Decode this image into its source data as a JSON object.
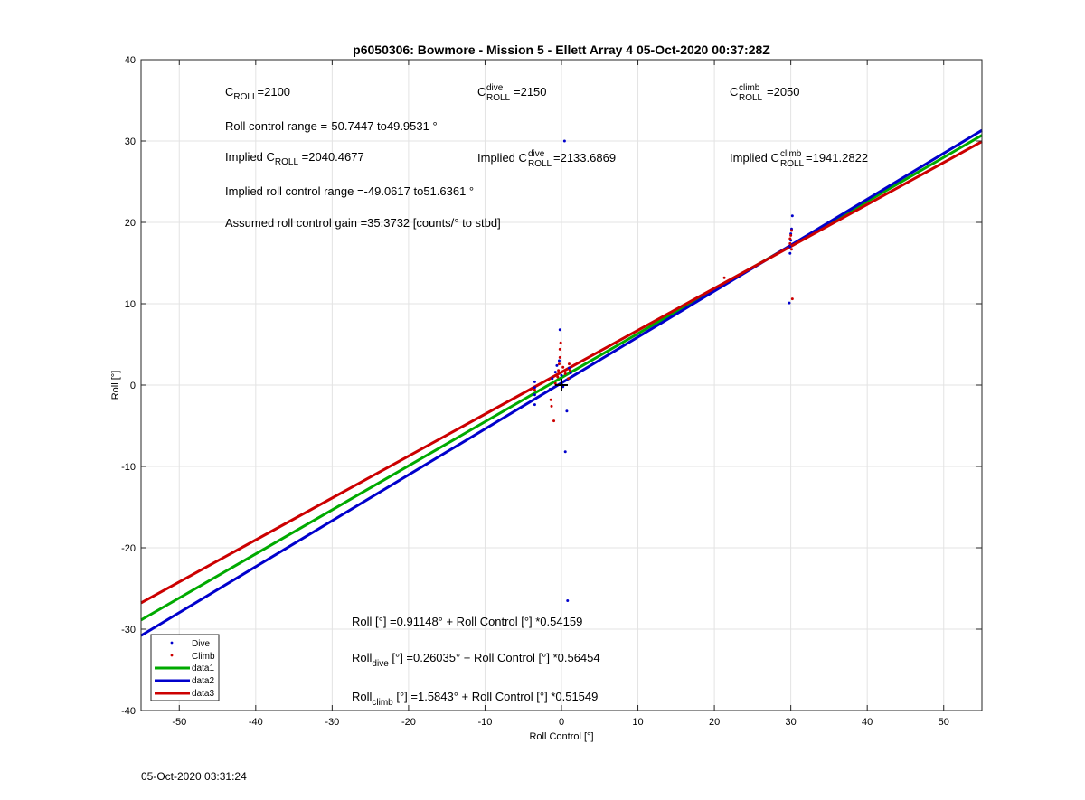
{
  "chart_data": {
    "type": "scatter",
    "title": "p6050306: Bowmore - Mission 5 - Ellett Array 4 05-Oct-2020 00:37:28Z",
    "xlabel": "Roll Control [°]",
    "ylabel": "Roll [°]",
    "xlim": [
      -55,
      55
    ],
    "ylim": [
      -40,
      40
    ],
    "xticks": [
      -50,
      -40,
      -30,
      -20,
      -10,
      0,
      10,
      20,
      30,
      40,
      50
    ],
    "yticks": [
      -40,
      -30,
      -20,
      -10,
      0,
      10,
      20,
      30,
      40
    ],
    "grid": true,
    "legend_position": "bottom-left",
    "series": [
      {
        "name": "Dive",
        "kind": "points",
        "color": "#0000cc",
        "points": [
          [
            -3.5,
            0.4
          ],
          [
            -3.5,
            -0.3
          ],
          [
            -3.5,
            -1.2
          ],
          [
            -3.5,
            -2.4
          ],
          [
            -1.5,
            -0.5
          ],
          [
            -1.2,
            0.8
          ],
          [
            -0.8,
            1.6
          ],
          [
            -0.6,
            2.4
          ],
          [
            -0.3,
            3.0
          ],
          [
            -0.2,
            6.8
          ],
          [
            0,
            1.2
          ],
          [
            0,
            0.2
          ],
          [
            0.2,
            -0.2
          ],
          [
            0.4,
            30.0
          ],
          [
            0.5,
            -8.2
          ],
          [
            0.7,
            -3.2
          ],
          [
            1.0,
            2.1
          ],
          [
            1.2,
            1.5
          ],
          [
            0.8,
            -26.5
          ],
          [
            29.8,
            10.1
          ],
          [
            29.9,
            16.2
          ],
          [
            29.9,
            17.0
          ],
          [
            30.0,
            17.8
          ],
          [
            30.0,
            18.6
          ],
          [
            30.1,
            19.2
          ],
          [
            30.2,
            20.8
          ]
        ]
      },
      {
        "name": "Climb",
        "kind": "points",
        "color": "#cc0000",
        "points": [
          [
            -3.5,
            -0.6
          ],
          [
            -1.4,
            -1.8
          ],
          [
            -1.3,
            -2.6
          ],
          [
            -1.0,
            -4.4
          ],
          [
            -0.8,
            0.2
          ],
          [
            -0.5,
            1.0
          ],
          [
            -0.4,
            1.8
          ],
          [
            -0.3,
            2.6
          ],
          [
            -0.2,
            3.4
          ],
          [
            -0.2,
            4.4
          ],
          [
            -0.1,
            5.2
          ],
          [
            0.2,
            2.2
          ],
          [
            0.5,
            1.4
          ],
          [
            0.9,
            0.8
          ],
          [
            1.0,
            2.6
          ],
          [
            1.1,
            1.8
          ],
          [
            21.3,
            13.2
          ],
          [
            29.9,
            17.4
          ],
          [
            29.9,
            18.0
          ],
          [
            30.0,
            18.4
          ],
          [
            30.1,
            16.7
          ],
          [
            30.1,
            19.0
          ],
          [
            30.2,
            10.6
          ]
        ]
      },
      {
        "name": "data1",
        "kind": "line",
        "color": "#00aa00",
        "intercept": 0.91148,
        "slope": 0.54159
      },
      {
        "name": "data2",
        "kind": "line",
        "color": "#0000cc",
        "intercept": 0.26035,
        "slope": 0.56454
      },
      {
        "name": "data3",
        "kind": "line",
        "color": "#cc0000",
        "intercept": 1.5843,
        "slope": 0.51549
      }
    ],
    "annotations": {
      "c_roll": {
        "base": "C",
        "sub": "ROLL",
        "value": "=2100"
      },
      "c_roll_dive": {
        "base": "C",
        "sup": "dive",
        "sub": "ROLL",
        "value": " =2150"
      },
      "c_roll_climb": {
        "base": "C",
        "sup": "climb",
        "sub": "ROLL",
        "value": " =2050"
      },
      "roll_control_range": "Roll control range =-50.7447 to49.9531 °",
      "implied_c_roll": {
        "prefix": "Implied C",
        "sub": "ROLL",
        "value": " =2040.4677"
      },
      "implied_c_roll_dive": {
        "prefix": "Implied C",
        "sup": "dive",
        "sub": "ROLL",
        "value": " =2133.6869"
      },
      "implied_c_roll_climb": {
        "prefix": "Implied C",
        "sup": "climb",
        "sub": "ROLL",
        "value": " =1941.2822"
      },
      "implied_roll_control_range": "Implied roll control range =-49.0617 to51.6361 °",
      "assumed_gain": "Assumed roll control gain =35.3732 [counts/° to stbd]",
      "fit_all": {
        "prefix": "Roll",
        "sub": "",
        "value": " [°] =0.91148° + Roll Control [°] *0.54159"
      },
      "fit_dive": {
        "prefix": "Roll",
        "sub": "dive",
        "value": " [°] =0.26035° + Roll Control [°] *0.56454"
      },
      "fit_climb": {
        "prefix": "Roll",
        "sub": "climb",
        "value": " [°] =1.5843° + Roll Control [°] *0.51549"
      }
    }
  },
  "footer_date": "05-Oct-2020 03:31:24"
}
